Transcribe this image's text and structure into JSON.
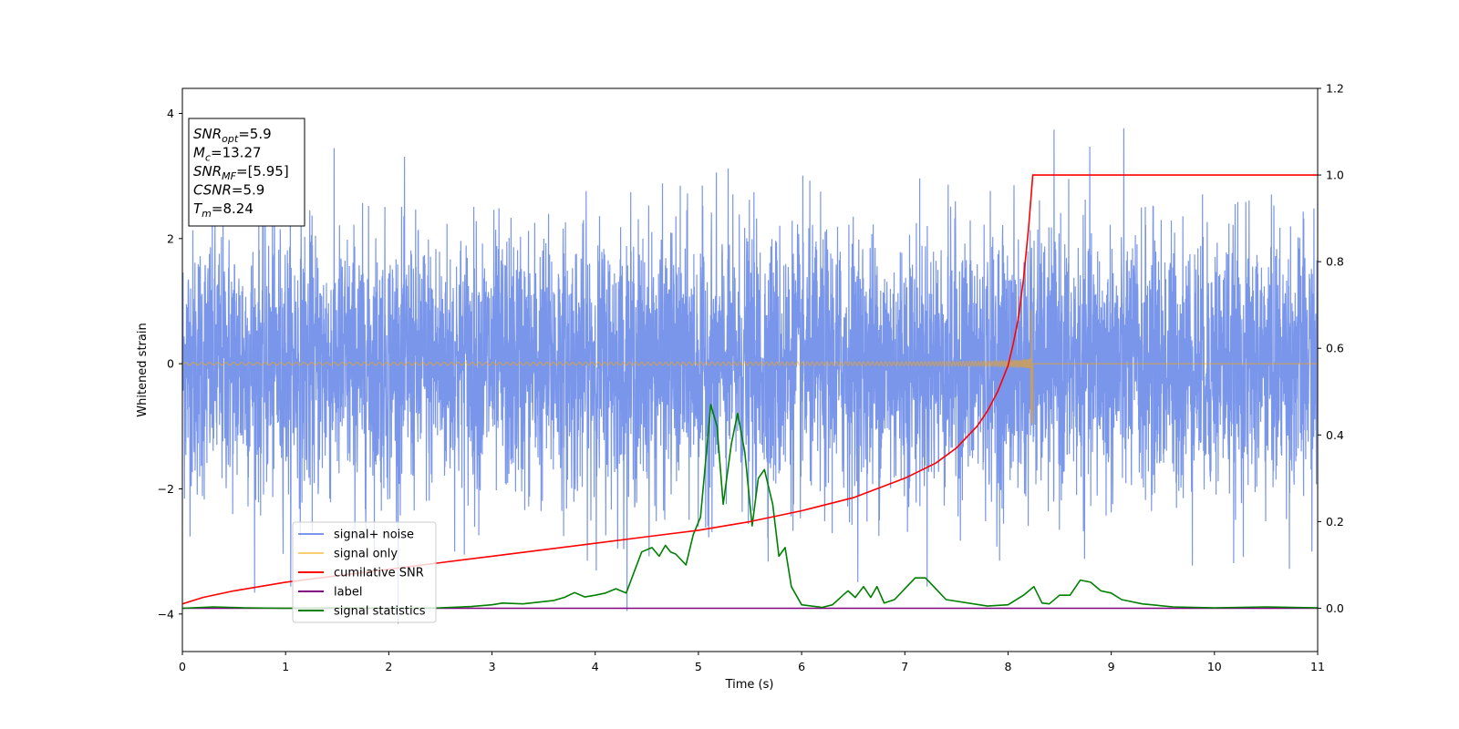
{
  "chart_data": {
    "type": "line",
    "x_axis": {
      "label": "Time (s)",
      "range": [
        0,
        11
      ],
      "ticks": [
        0,
        1,
        2,
        3,
        4,
        5,
        6,
        7,
        8,
        9,
        10,
        11
      ]
    },
    "y_axis_left": {
      "label": "Whitened strain",
      "range": [
        -4.6,
        4.4
      ],
      "ticks": [
        -4,
        -2,
        0,
        2,
        4
      ],
      "tick_labels": [
        "−4",
        "−2",
        "0",
        "2",
        "4"
      ]
    },
    "y_axis_right": {
      "label": "",
      "range": [
        -0.1,
        1.2
      ],
      "ticks": [
        0.0,
        0.2,
        0.4,
        0.6,
        0.8,
        1.0,
        1.2
      ],
      "tick_labels": [
        "0.0",
        "0.2",
        "0.4",
        "0.6",
        "0.8",
        "1.0",
        "1.2"
      ]
    },
    "grid": false,
    "legend_placement": "lower-left",
    "series": [
      {
        "name": "signal+ noise",
        "axis": "left",
        "color": "#4169e1",
        "style": "noise",
        "std": 1.0,
        "y_range": [
          -4.15,
          3.95
        ],
        "sample_step": 0.002
      },
      {
        "name": "signal only",
        "axis": "left",
        "color": "#ffa500",
        "style": "chirp",
        "merge_time": 8.24,
        "start_amplitude": 0.02,
        "peak_range": [
          -0.95,
          1.35
        ]
      },
      {
        "name": "cumilative SNR",
        "axis": "right",
        "color": "#ff0000",
        "x": [
          0,
          0.2,
          0.5,
          1,
          1.5,
          2,
          2.5,
          3,
          3.5,
          4,
          4.5,
          5,
          5.5,
          6,
          6.5,
          7,
          7.3,
          7.5,
          7.7,
          7.8,
          7.9,
          8.0,
          8.05,
          8.1,
          8.15,
          8.2,
          8.24,
          8.3,
          9,
          10,
          11
        ],
        "values": [
          0.01,
          0.025,
          0.04,
          0.06,
          0.075,
          0.09,
          0.105,
          0.12,
          0.135,
          0.15,
          0.165,
          0.18,
          0.2,
          0.225,
          0.255,
          0.3,
          0.335,
          0.37,
          0.42,
          0.455,
          0.5,
          0.56,
          0.61,
          0.67,
          0.76,
          0.88,
          1.0,
          1.0,
          1.0,
          1.0,
          1.0
        ]
      },
      {
        "name": "label",
        "axis": "right",
        "color": "#800080",
        "x": [
          0,
          11
        ],
        "values": [
          0,
          0
        ]
      },
      {
        "name": "signal statistics",
        "axis": "right",
        "color": "#008000",
        "x": [
          0,
          0.3,
          0.6,
          1,
          1.5,
          2,
          2.5,
          2.8,
          3.0,
          3.1,
          3.3,
          3.6,
          3.7,
          3.8,
          3.9,
          4.0,
          4.1,
          4.2,
          4.3,
          4.45,
          4.55,
          4.62,
          4.68,
          4.73,
          4.78,
          4.88,
          4.95,
          5.02,
          5.12,
          5.18,
          5.24,
          5.32,
          5.38,
          5.45,
          5.52,
          5.58,
          5.64,
          5.72,
          5.78,
          5.84,
          5.9,
          6.0,
          6.2,
          6.3,
          6.4,
          6.45,
          6.52,
          6.6,
          6.67,
          6.73,
          6.8,
          6.9,
          7.0,
          7.1,
          7.2,
          7.3,
          7.4,
          7.8,
          8.0,
          8.15,
          8.25,
          8.33,
          8.4,
          8.5,
          8.6,
          8.7,
          8.8,
          8.9,
          9.0,
          9.1,
          9.3,
          9.6,
          10.0,
          10.5,
          11
        ],
        "values": [
          0,
          0.003,
          0.001,
          0,
          0.001,
          0,
          0.001,
          0.004,
          0.008,
          0.012,
          0.01,
          0.018,
          0.025,
          0.036,
          0.026,
          0.03,
          0.035,
          0.045,
          0.035,
          0.13,
          0.14,
          0.12,
          0.145,
          0.13,
          0.125,
          0.1,
          0.17,
          0.21,
          0.47,
          0.42,
          0.24,
          0.38,
          0.45,
          0.36,
          0.19,
          0.3,
          0.32,
          0.24,
          0.12,
          0.14,
          0.05,
          0.008,
          0.002,
          0.008,
          0.03,
          0.04,
          0.025,
          0.05,
          0.025,
          0.05,
          0.012,
          0.02,
          0.045,
          0.07,
          0.07,
          0.045,
          0.02,
          0.005,
          0.008,
          0.03,
          0.05,
          0.012,
          0.01,
          0.03,
          0.03,
          0.065,
          0.06,
          0.04,
          0.035,
          0.02,
          0.01,
          0.003,
          0.001,
          0.003,
          0.001
        ]
      }
    ],
    "annotation_box": [
      {
        "base": "SNR",
        "sub": "opt",
        "rest": "=5.9"
      },
      {
        "base": "M",
        "sub": "c",
        "rest": "=13.27"
      },
      {
        "base": "SNR",
        "sub": "MF",
        "rest": "=[5.95]"
      },
      {
        "base": "CSNR",
        "sub": "",
        "rest": "=5.9"
      },
      {
        "base": "T",
        "sub": "m",
        "rest": "=8.24"
      }
    ]
  }
}
